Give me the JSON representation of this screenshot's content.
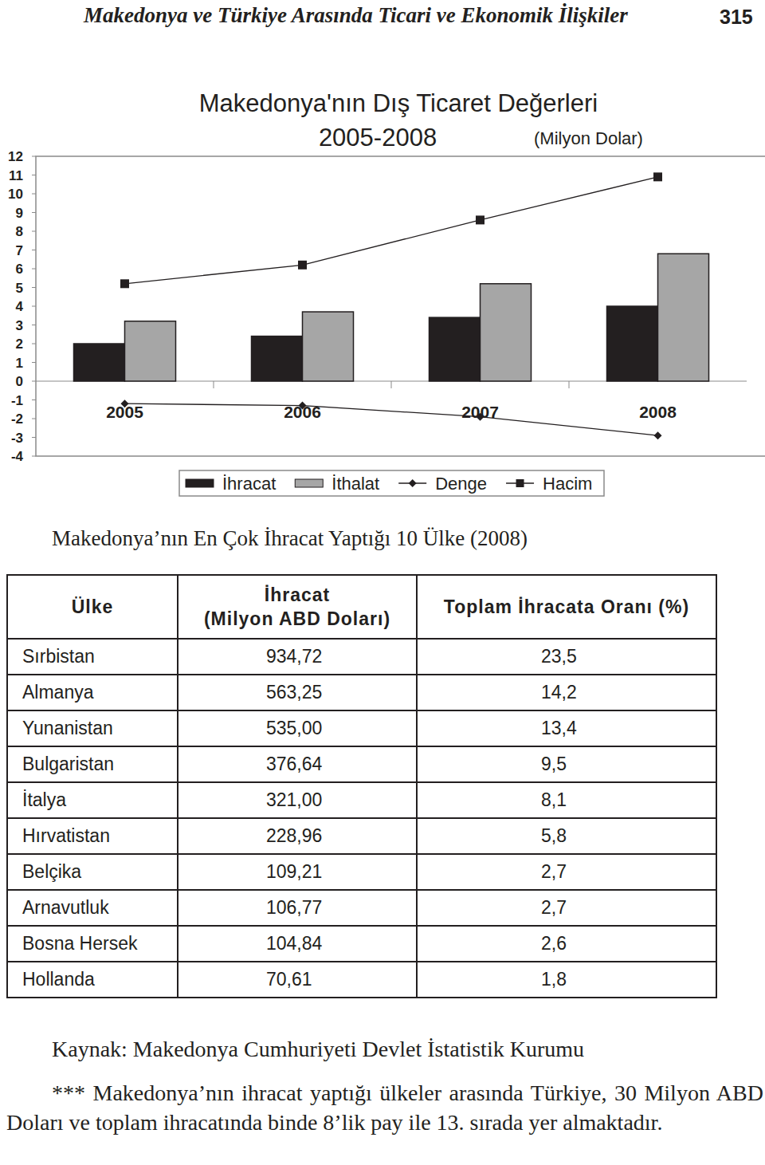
{
  "header": {
    "title": "Makedonya ve Türkiye Arasında Ticari ve Ekonomik İlişkiler",
    "page": "315"
  },
  "chart_data": {
    "type": "bar",
    "title": "Makedonya'nın Dış Ticaret Değerleri",
    "subtitle": "2005-2008",
    "annotation": "(Milyon Dolar)",
    "categories": [
      "2005",
      "2006",
      "2007",
      "2008"
    ],
    "series": [
      {
        "name": "İhracat",
        "type": "bar",
        "color": "#231f20",
        "values": [
          2.0,
          2.4,
          3.4,
          4.0
        ]
      },
      {
        "name": "İthalat",
        "type": "bar",
        "color": "#a6a6a6",
        "values": [
          3.2,
          3.7,
          5.2,
          6.8
        ]
      },
      {
        "name": "Denge",
        "type": "line",
        "color": "#231f20",
        "marker": "diamond",
        "values": [
          -1.2,
          -1.3,
          -1.9,
          -2.9
        ]
      },
      {
        "name": "Hacim",
        "type": "line",
        "color": "#231f20",
        "marker": "square",
        "values": [
          5.2,
          6.2,
          8.6,
          10.9
        ]
      }
    ],
    "ylim": [
      -4,
      12
    ],
    "yticks": [
      -4,
      -3,
      -2,
      -1,
      0,
      1,
      2,
      3,
      4,
      5,
      6,
      7,
      8,
      9,
      10,
      11,
      12
    ],
    "grid": false,
    "legend": "bottom"
  },
  "table": {
    "title": "Makedonya’nın En Çok İhracat Yaptığı 10 Ülke (2008)",
    "columns": [
      [
        "Ülke"
      ],
      [
        "İhracat",
        "(Milyon ABD Doları)"
      ],
      [
        "Toplam İhracata Oranı (%)"
      ]
    ],
    "rows": [
      [
        "Sırbistan",
        "934,72",
        "23,5"
      ],
      [
        "Almanya",
        "563,25",
        "14,2"
      ],
      [
        "Yunanistan",
        "535,00",
        "13,4"
      ],
      [
        "Bulgaristan",
        "376,64",
        "9,5"
      ],
      [
        "İtalya",
        "321,00",
        "8,1"
      ],
      [
        "Hırvatistan",
        "228,96",
        "5,8"
      ],
      [
        "Belçika",
        "109,21",
        "2,7"
      ],
      [
        "Arnavutluk",
        "106,77",
        "2,7"
      ],
      [
        "Bosna Hersek",
        "104,84",
        "2,6"
      ],
      [
        "Hollanda",
        "70,61",
        "1,8"
      ]
    ]
  },
  "source": "Kaynak: Makedonya Cumhuriyeti Devlet İstatistik Kurumu",
  "note": "*** Makedonya’nın ihracat yaptığı ülkeler arasında Türkiye, 30 Milyon ABD Doları ve toplam ihracatında binde 8’lik pay ile 13. sırada yer almaktadır."
}
